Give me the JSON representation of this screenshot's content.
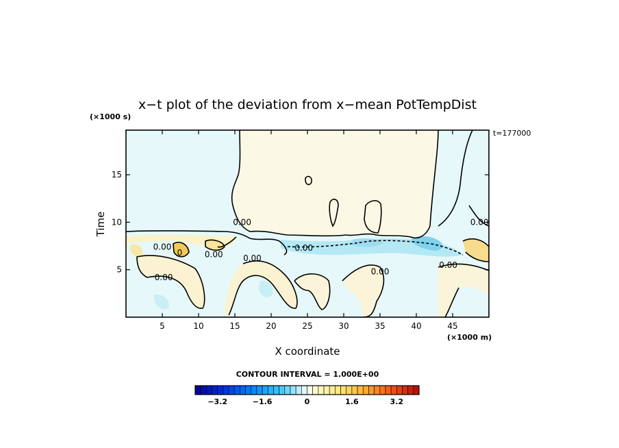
{
  "chart_data": {
    "type": "heatmap",
    "title": "x−t plot of the deviation from x−mean PotTempDist",
    "xlabel": "X coordinate",
    "ylabel": "Time",
    "x_unit": "(×1000 m)",
    "y_unit": "(×1000 s)",
    "time_label": "t=177000",
    "xlim": [
      0,
      50
    ],
    "ylim": [
      0,
      19.7
    ],
    "x_ticks": [
      5,
      10,
      15,
      20,
      25,
      30,
      35,
      40,
      45
    ],
    "y_ticks": [
      5,
      10,
      15
    ],
    "contour_interval_text": "CONTOUR INTERVAL = 1.000E+00",
    "contour_labels": [
      {
        "text": "0.00",
        "x": 16.0,
        "y": 10.0
      },
      {
        "text": "0.00",
        "x": 5.0,
        "y": 7.4
      },
      {
        "text": "0.00",
        "x": 12.1,
        "y": 6.6
      },
      {
        "text": "0.00",
        "x": 17.4,
        "y": 6.2
      },
      {
        "text": "0.00",
        "x": 5.2,
        "y": 4.2
      },
      {
        "text": "0.00",
        "x": 24.5,
        "y": 7.3
      },
      {
        "text": "0.00",
        "x": 35.0,
        "y": 4.8
      },
      {
        "text": "0.00",
        "x": 44.4,
        "y": 5.5
      },
      {
        "text": "0.00",
        "x": 48.7,
        "y": 10.0
      },
      {
        "text": "0",
        "x": 7.4,
        "y": 6.8
      }
    ],
    "colorbar": {
      "range": [
        -4.0,
        4.0
      ],
      "step": 0.2,
      "tick_values": [
        -3.2,
        -1.6,
        0,
        1.6,
        3.2
      ],
      "tick_labels": [
        "−3.2",
        "−1.6",
        "0",
        "1.6",
        "3.2"
      ]
    }
  }
}
